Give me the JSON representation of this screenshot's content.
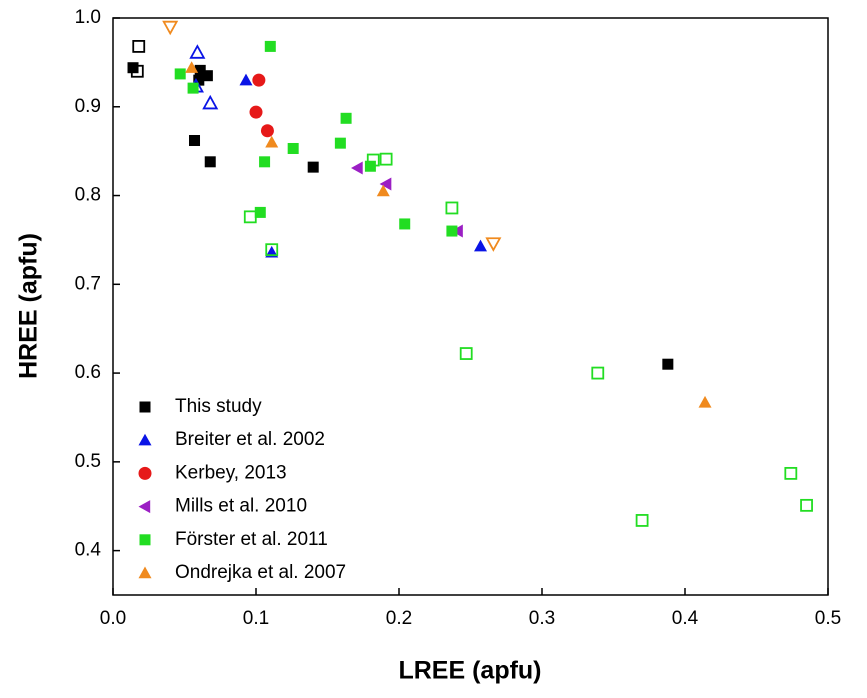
{
  "chart_data": {
    "type": "scatter",
    "xlabel": "LREE (apfu)",
    "ylabel": "HREE (apfu)",
    "xlim": [
      0,
      0.5
    ],
    "ylim": [
      0.35,
      1.0
    ],
    "xticks": [
      {
        "value": 0,
        "label": "0.0"
      },
      0.1,
      0.2,
      0.3,
      0.4,
      0.5
    ],
    "yticks": [
      0.4,
      0.5,
      0.6,
      0.7,
      0.8,
      0.9,
      {
        "value": 1,
        "label": "1.0"
      }
    ],
    "legend": "lower left",
    "series": [
      {
        "name": "This study",
        "color": "#000000",
        "marker": "square",
        "x": [
          0.014,
          0.061,
          0.066,
          0.057,
          0.068,
          0.14,
          0.388,
          0.06,
          0.018,
          0.017
        ],
        "values": [
          0.944,
          0.941,
          0.935,
          0.862,
          0.838,
          0.832,
          0.61,
          0.93,
          0.968,
          0.94
        ],
        "open": [
          false,
          false,
          false,
          false,
          false,
          false,
          false,
          false,
          true,
          true
        ]
      },
      {
        "name": "Breiter et al. 2002",
        "color": "#0a14e6",
        "marker": "triangle-up",
        "x": [
          0.093,
          0.257,
          0.111,
          0.059,
          0.068,
          0.058
        ],
        "values": [
          0.93,
          0.743,
          0.736,
          0.961,
          0.904,
          0.923
        ],
        "open": [
          false,
          false,
          false,
          true,
          true,
          true
        ]
      },
      {
        "name": "Kerbey, 2013",
        "color": "#e61919",
        "marker": "circle",
        "x": [
          0.102,
          0.1,
          0.108
        ],
        "values": [
          0.93,
          0.894,
          0.873
        ],
        "open": [
          false,
          false,
          false
        ]
      },
      {
        "name": "Mills et al. 2010",
        "color": "#9b1fc4",
        "marker": "triangle-left",
        "x": [
          0.171,
          0.191,
          0.241
        ],
        "values": [
          0.831,
          0.813,
          0.76
        ],
        "open": [
          false,
          false,
          false
        ]
      },
      {
        "name": "Förster et al. 2011",
        "color": "#22dd22",
        "marker": "square",
        "x": [
          0.047,
          0.056,
          0.11,
          0.163,
          0.106,
          0.126,
          0.159,
          0.18,
          0.103,
          0.204,
          0.237,
          0.096,
          0.111,
          0.182,
          0.191,
          0.237,
          0.247,
          0.339,
          0.37,
          0.474,
          0.485
        ],
        "values": [
          0.937,
          0.921,
          0.968,
          0.887,
          0.838,
          0.853,
          0.859,
          0.833,
          0.781,
          0.768,
          0.76,
          0.776,
          0.739,
          0.84,
          0.841,
          0.786,
          0.622,
          0.6,
          0.434,
          0.487,
          0.451
        ],
        "open": [
          false,
          false,
          false,
          false,
          false,
          false,
          false,
          false,
          false,
          false,
          false,
          true,
          true,
          true,
          true,
          true,
          true,
          true,
          true,
          true,
          true
        ]
      },
      {
        "name": "Ondrejka et al. 2007",
        "color": "#f08a1e",
        "marker": "triangle-up",
        "open_marker": "triangle-down",
        "x": [
          0.111,
          0.189,
          0.414,
          0.055,
          0.04,
          0.266
        ],
        "values": [
          0.86,
          0.805,
          0.567,
          0.944,
          0.99,
          0.746
        ],
        "open": [
          false,
          false,
          false,
          false,
          true,
          true
        ]
      }
    ]
  }
}
